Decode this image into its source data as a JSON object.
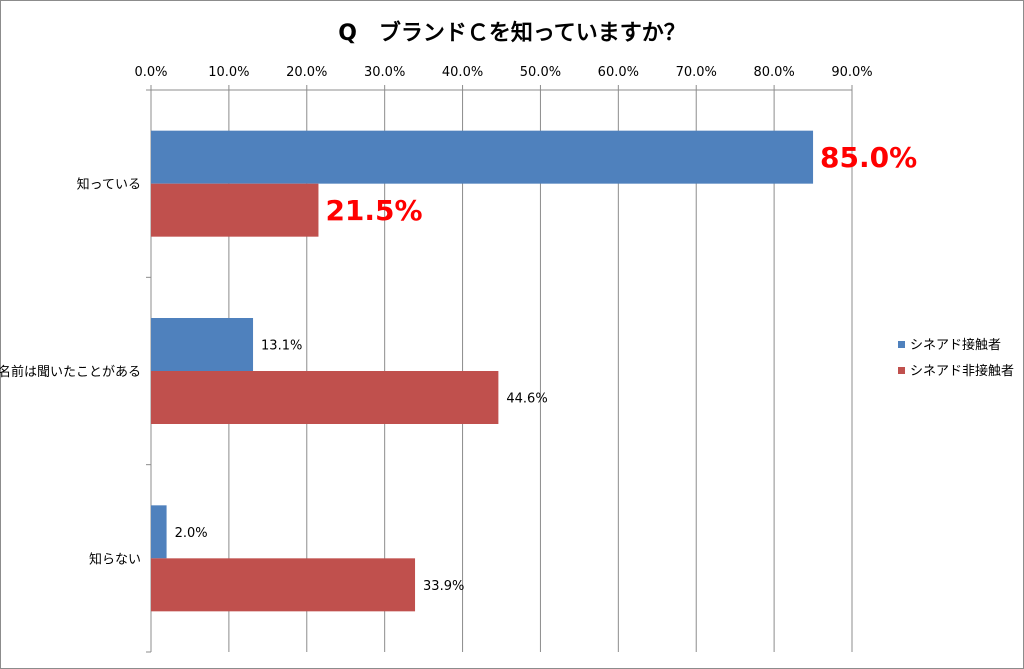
{
  "chart_data": {
    "type": "bar",
    "orientation": "horizontal",
    "title": "Q　ブランドＣを知っていますか？",
    "categories": [
      "知っている",
      "名前は聞いたことがある",
      "知らない"
    ],
    "series": [
      {
        "name": "シネアド接触者",
        "color": "#4f81bd",
        "values": [
          85.0,
          13.1,
          2.0
        ]
      },
      {
        "name": "シネアド非接触者",
        "color": "#c0504d",
        "values": [
          21.5,
          44.6,
          33.9
        ]
      }
    ],
    "data_labels": [
      [
        "85.0%",
        "13.1%",
        "2.0%"
      ],
      [
        "21.5%",
        "44.6%",
        "33.9%"
      ]
    ],
    "highlighted_category": "知っている",
    "highlight_color": "#ff0000",
    "xlim": [
      0,
      90
    ],
    "xticks": [
      "0.0%",
      "10.0%",
      "20.0%",
      "30.0%",
      "40.0%",
      "50.0%",
      "60.0%",
      "70.0%",
      "80.0%",
      "90.0%"
    ],
    "x_axis_position": "top",
    "grid": true,
    "legend_position": "right"
  }
}
